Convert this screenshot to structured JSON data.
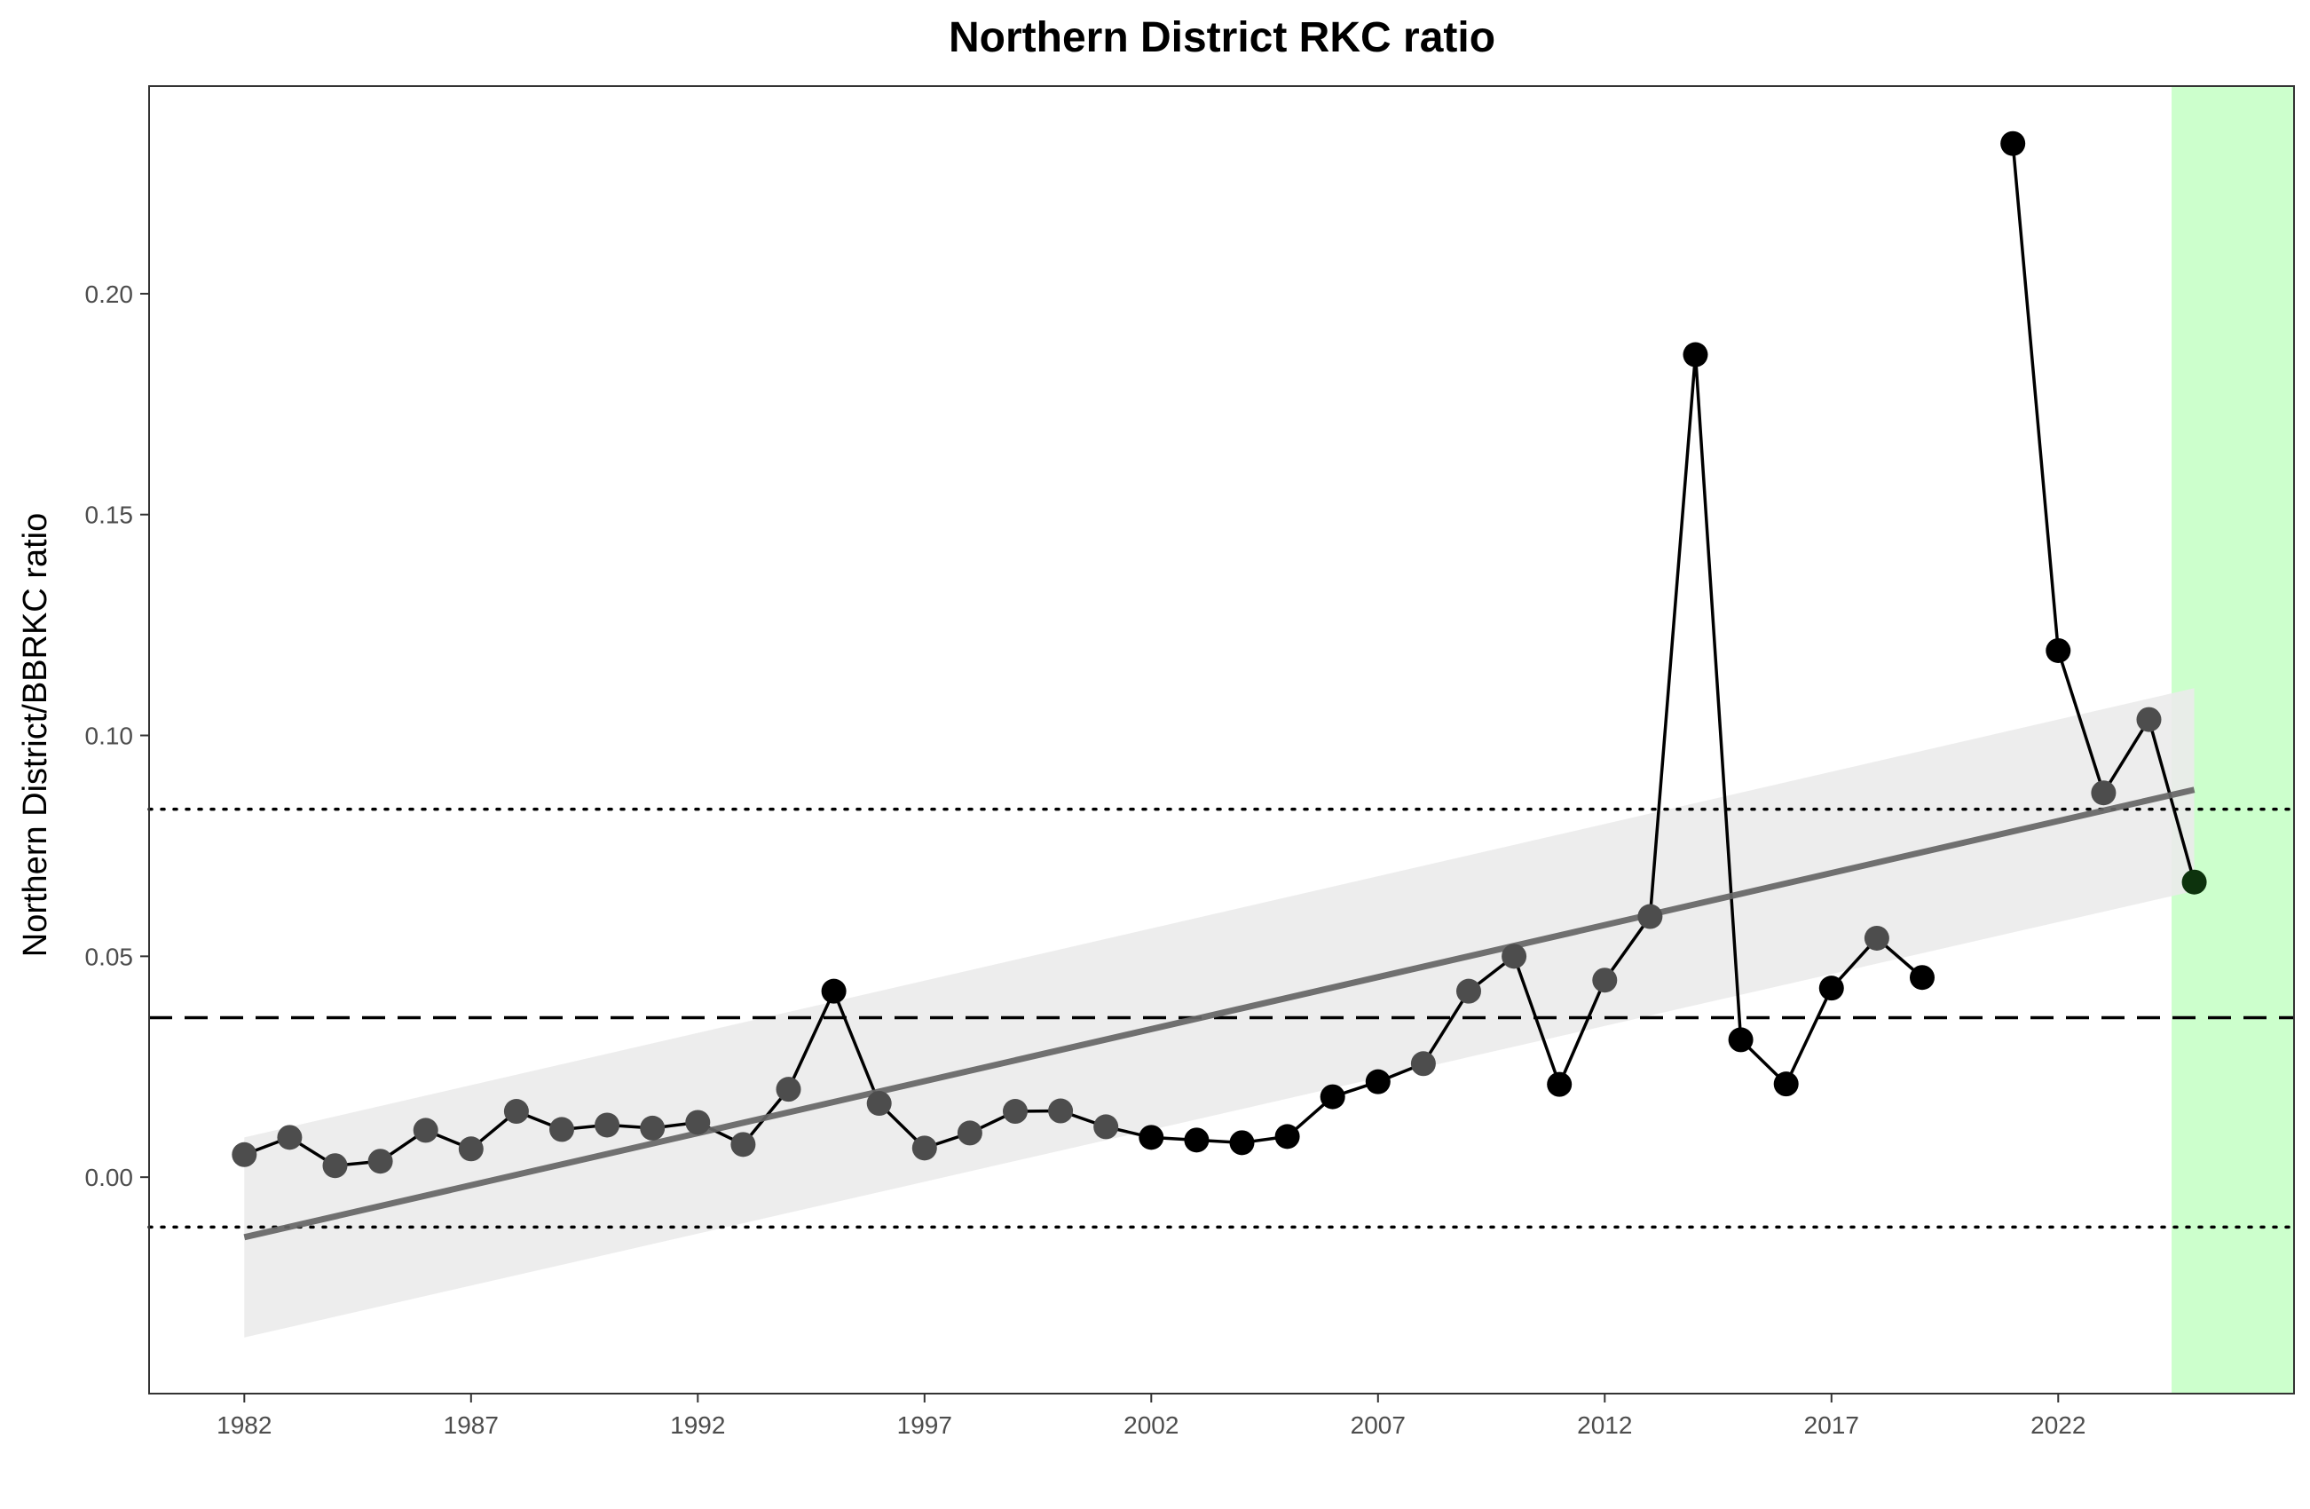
{
  "chart_data": {
    "type": "line",
    "title": "Northern District RKC ratio",
    "xlabel": "",
    "ylabel": "Northern District/BBRKC ratio",
    "xlim": [
      1979.9,
      2027.2
    ],
    "ylim": [
      -0.049,
      0.247
    ],
    "x_ticks": [
      1982,
      1987,
      1992,
      1997,
      2002,
      2007,
      2012,
      2017,
      2022
    ],
    "y_ticks": [
      0.0,
      0.05,
      0.1,
      0.15,
      0.2
    ],
    "y_tick_labels": [
      "0.00",
      "0.05",
      "0.10",
      "0.15",
      "0.20"
    ],
    "grid": false,
    "colors": {
      "line": "#000000",
      "point_dark": "#000000",
      "point_gray": "#4d4d4d",
      "trend": "#666666",
      "ribbon": "#ebebeb",
      "highlight": "#ccffcc",
      "last_point": "#0d330d"
    },
    "series": [
      {
        "x": [
          1982,
          1983,
          1984,
          1985,
          1986,
          1987,
          1988,
          1989,
          1990,
          1991,
          1992,
          1993,
          1994,
          1995,
          1996,
          1997,
          1998,
          1999,
          2000,
          2001,
          2002,
          2003,
          2004,
          2005,
          2006,
          2007,
          2008,
          2009,
          2010,
          2011,
          2012,
          2013,
          2014,
          2015,
          2016,
          2017,
          2018,
          2019,
          2021,
          2022,
          2023,
          2024,
          2025
        ],
        "y": [
          0.0051,
          0.009,
          0.0026,
          0.0036,
          0.0106,
          0.0064,
          0.0149,
          0.0108,
          0.0118,
          0.0111,
          0.0124,
          0.0074,
          0.0199,
          0.0421,
          0.0167,
          0.0066,
          0.01,
          0.0149,
          0.015,
          0.0114,
          0.009,
          0.0084,
          0.0078,
          0.0092,
          0.0182,
          0.0216,
          0.0257,
          0.0421,
          0.05,
          0.021,
          0.0446,
          0.059,
          0.1862,
          0.0311,
          0.0211,
          0.0428,
          0.0541,
          0.0452,
          0.234,
          0.1192,
          0.087,
          0.1036,
          0.0668
        ]
      }
    ],
    "reference_lines": {
      "mean": 0.0361,
      "upper_sd": 0.0833,
      "lower_sd": -0.0113
    },
    "trend": {
      "x_start": 1982,
      "x_end": 2025,
      "y_start": -0.0136,
      "y_end": 0.0877,
      "ci_lower_start": -0.0363,
      "ci_lower_end": 0.0648,
      "ci_upper_start": 0.009,
      "ci_upper_end": 0.1107
    },
    "highlight_range": [
      2024.5,
      2027.2
    ]
  }
}
